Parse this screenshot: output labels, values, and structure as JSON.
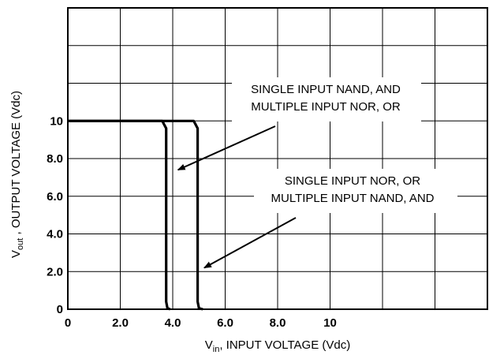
{
  "chart_data": {
    "type": "line",
    "title": "",
    "xlabel": {
      "main": "V",
      "sub": "in",
      "rest": ", INPUT VOLTAGE (Vdc)"
    },
    "ylabel": {
      "main": "V",
      "sub": "out",
      "rest": " ,  OUTPUT VOLTAGE (Vdc)"
    },
    "xlim": [
      0,
      16
    ],
    "ylim": [
      0,
      16
    ],
    "grid": true,
    "x_ticks": [
      {
        "value": 0,
        "label": "0"
      },
      {
        "value": 2,
        "label": "2.0"
      },
      {
        "value": 4,
        "label": "4.0"
      },
      {
        "value": 6,
        "label": "6.0"
      },
      {
        "value": 8,
        "label": "8.0"
      },
      {
        "value": 10,
        "label": "10"
      }
    ],
    "y_ticks": [
      {
        "value": 0,
        "label": "0"
      },
      {
        "value": 2,
        "label": "2.0"
      },
      {
        "value": 4,
        "label": "4.0"
      },
      {
        "value": 6,
        "label": "6.0"
      },
      {
        "value": 8,
        "label": "8.0"
      },
      {
        "value": 10,
        "label": "10"
      }
    ],
    "series": [
      {
        "x": [
          0,
          3.6,
          3.75,
          3.75,
          3.8,
          3.9
        ],
        "y": [
          10,
          10,
          9.6,
          0.4,
          0.05,
          0
        ]
      },
      {
        "x": [
          0,
          4.8,
          4.95,
          4.95,
          5.0,
          5.15
        ],
        "y": [
          10,
          10,
          9.6,
          0.4,
          0.05,
          0
        ]
      }
    ],
    "annotations": [
      {
        "lines": [
          "SINGLE INPUT NAND, AND",
          "MULTIPLE INPUT NOR, OR"
        ],
        "arrow_to": {
          "x": 4.2,
          "y": 7.4
        }
      },
      {
        "lines": [
          "SINGLE INPUT NOR, OR",
          "MULTIPLE INPUT NAND, AND"
        ],
        "arrow_to": {
          "x": 5.2,
          "y": 2.2
        }
      }
    ]
  }
}
